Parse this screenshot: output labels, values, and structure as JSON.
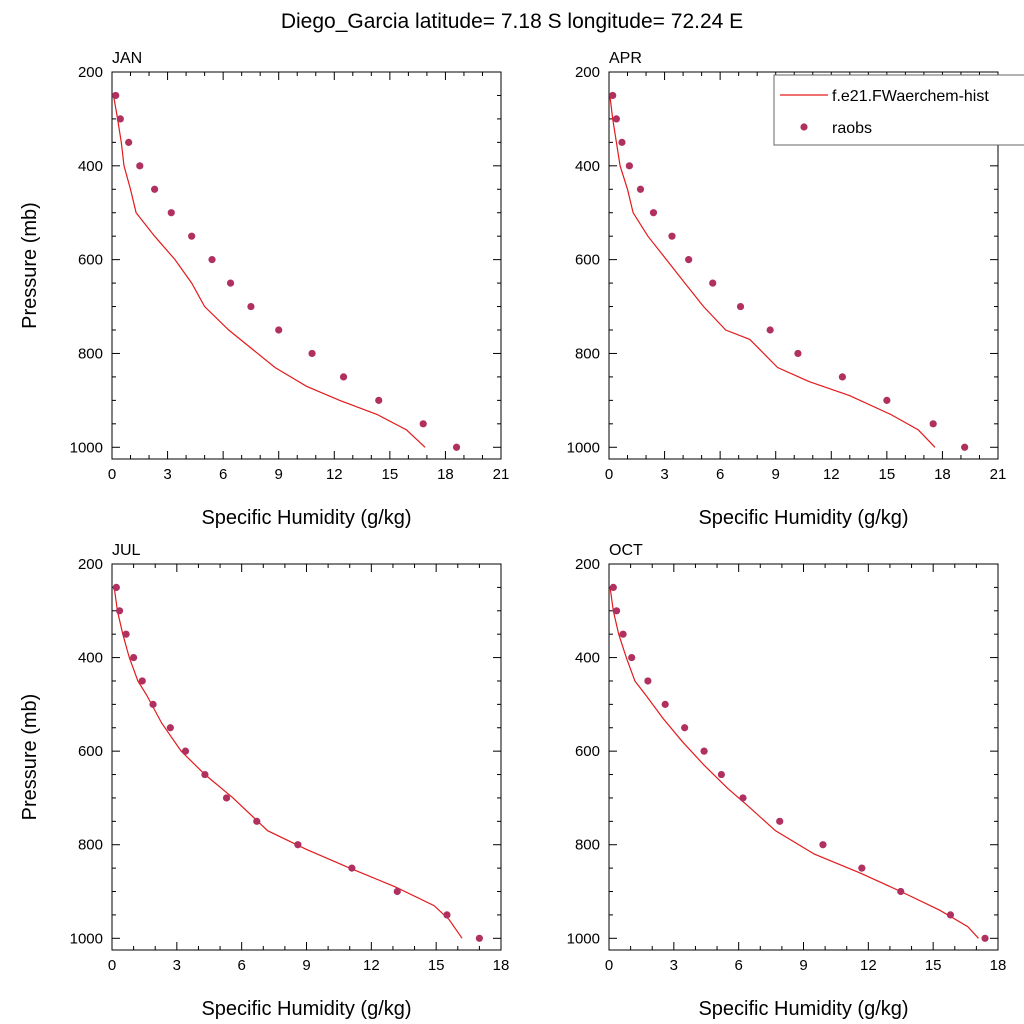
{
  "figure": {
    "title": "Diego_Garcia  latitude= 7.18 S longitude= 72.24 E"
  },
  "legend": {
    "model_label": "f.e21.FWaerchem-hist",
    "obs_label": "raobs",
    "model_color": "#e31a1c",
    "obs_color": "#b03060"
  },
  "chart_data": [
    {
      "type": "line",
      "panel": "JAN",
      "xlabel": "Specific Humidity (g/kg)",
      "ylabel": "Pressure (mb)",
      "xlim": [
        0,
        21
      ],
      "ylim": [
        200,
        1025
      ],
      "y_reversed": true,
      "xticks": [
        0,
        3,
        6,
        9,
        12,
        15,
        18,
        21
      ],
      "yticks": [
        200,
        400,
        600,
        800,
        1000
      ],
      "series": [
        {
          "name": "f.e21.FWaerchem-hist",
          "style": "line",
          "x": [
            0.08,
            0.3,
            0.5,
            0.65,
            1.0,
            1.3,
            2.3,
            3.4,
            4.3,
            5.0,
            6.3,
            8.8,
            10.5,
            12.3,
            14.3,
            15.9,
            16.9
          ],
          "y": [
            250,
            300,
            350,
            400,
            450,
            500,
            550,
            600,
            650,
            700,
            750,
            830,
            870,
            900,
            930,
            963,
            1000
          ]
        },
        {
          "name": "raobs",
          "style": "markers",
          "x": [
            0.2,
            0.45,
            0.9,
            1.5,
            2.3,
            3.2,
            4.3,
            5.4,
            6.4,
            7.5,
            9.0,
            10.8,
            12.5,
            14.4,
            16.8,
            18.6
          ],
          "y": [
            250,
            300,
            350,
            400,
            450,
            500,
            550,
            600,
            650,
            700,
            750,
            800,
            850,
            900,
            950,
            1000
          ]
        }
      ]
    },
    {
      "type": "line",
      "panel": "APR",
      "xlabel": "Specific Humidity (g/kg)",
      "ylabel": "Pressure (mb)",
      "xlim": [
        0,
        21
      ],
      "ylim": [
        200,
        1025
      ],
      "y_reversed": true,
      "xticks": [
        0,
        3,
        6,
        9,
        12,
        15,
        18,
        21
      ],
      "yticks": [
        200,
        400,
        600,
        800,
        1000
      ],
      "series": [
        {
          "name": "f.e21.FWaerchem-hist",
          "style": "line",
          "x": [
            0.05,
            0.2,
            0.4,
            0.6,
            1.0,
            1.3,
            2.1,
            3.1,
            4.1,
            5.1,
            6.3,
            7.6,
            9.1,
            10.8,
            13.0,
            15.2,
            16.7,
            17.6
          ],
          "y": [
            250,
            300,
            350,
            400,
            450,
            500,
            550,
            600,
            650,
            700,
            750,
            770,
            830,
            860,
            890,
            930,
            963,
            1000
          ]
        },
        {
          "name": "raobs",
          "style": "markers",
          "x": [
            0.2,
            0.4,
            0.7,
            1.1,
            1.7,
            2.4,
            3.4,
            4.3,
            5.6,
            7.1,
            8.7,
            10.2,
            12.6,
            15.0,
            17.5,
            19.2
          ],
          "y": [
            250,
            300,
            350,
            400,
            450,
            500,
            550,
            600,
            650,
            700,
            750,
            800,
            850,
            900,
            950,
            1000
          ]
        }
      ]
    },
    {
      "type": "line",
      "panel": "JUL",
      "xlabel": "Specific Humidity (g/kg)",
      "ylabel": "Pressure (mb)",
      "xlim": [
        0,
        18
      ],
      "ylim": [
        200,
        1025
      ],
      "y_reversed": true,
      "xticks": [
        0,
        3,
        6,
        9,
        12,
        15,
        18
      ],
      "yticks": [
        200,
        400,
        600,
        800,
        1000
      ],
      "series": [
        {
          "name": "f.e21.FWaerchem-hist",
          "style": "line",
          "x": [
            0.1,
            0.25,
            0.5,
            0.8,
            1.2,
            1.6,
            2.3,
            3.2,
            4.3,
            5.6,
            7.2,
            9.0,
            11.0,
            13.1,
            14.9,
            15.6,
            16.2
          ],
          "y": [
            250,
            300,
            350,
            400,
            450,
            480,
            540,
            600,
            650,
            700,
            770,
            810,
            850,
            890,
            930,
            960,
            1000
          ]
        },
        {
          "name": "raobs",
          "style": "markers",
          "x": [
            0.2,
            0.35,
            0.65,
            1.0,
            1.4,
            1.9,
            2.7,
            3.4,
            4.3,
            5.3,
            6.7,
            8.6,
            11.1,
            13.2,
            15.5,
            17.0
          ],
          "y": [
            250,
            300,
            350,
            400,
            450,
            500,
            550,
            600,
            650,
            700,
            750,
            800,
            850,
            900,
            950,
            1000
          ]
        }
      ]
    },
    {
      "type": "line",
      "panel": "OCT",
      "xlabel": "Specific Humidity (g/kg)",
      "ylabel": "Pressure (mb)",
      "xlim": [
        0,
        18
      ],
      "ylim": [
        200,
        1025
      ],
      "y_reversed": true,
      "xticks": [
        0,
        3,
        6,
        9,
        12,
        15,
        18
      ],
      "yticks": [
        200,
        400,
        600,
        800,
        1000
      ],
      "series": [
        {
          "name": "f.e21.FWaerchem-hist",
          "style": "line",
          "x": [
            0.05,
            0.2,
            0.45,
            0.8,
            1.2,
            1.7,
            2.5,
            3.4,
            4.4,
            5.5,
            6.5,
            7.7,
            9.5,
            11.6,
            13.5,
            15.3,
            16.6,
            17.1
          ],
          "y": [
            250,
            300,
            350,
            400,
            450,
            480,
            530,
            580,
            630,
            680,
            720,
            770,
            820,
            860,
            900,
            940,
            975,
            1000
          ]
        },
        {
          "name": "raobs",
          "style": "markers",
          "x": [
            0.2,
            0.35,
            0.65,
            1.05,
            1.8,
            2.6,
            3.5,
            4.4,
            5.2,
            6.2,
            7.9,
            9.9,
            11.7,
            13.5,
            15.8,
            17.4
          ],
          "y": [
            250,
            300,
            350,
            400,
            450,
            500,
            550,
            600,
            650,
            700,
            750,
            800,
            850,
            900,
            950,
            1000
          ]
        }
      ]
    }
  ]
}
